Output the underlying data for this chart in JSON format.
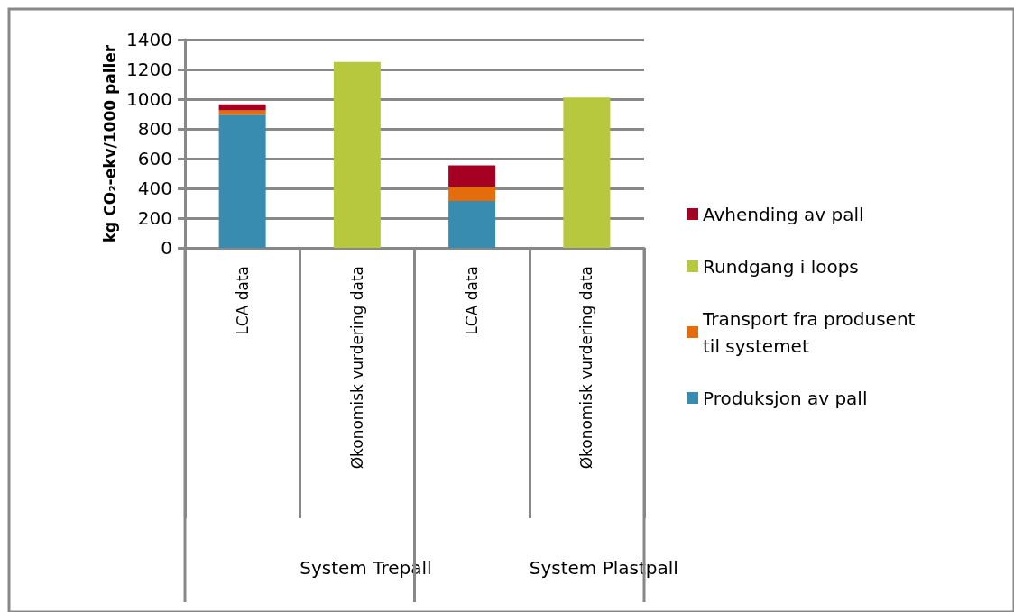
{
  "chart_data": {
    "type": "bar",
    "stacked": true,
    "ylabel": "kg CO₂-ekv/1000 paller",
    "categories": [
      "LCA data",
      "Økonomisk vurdering data",
      "LCA data",
      "Økonomisk vurdering data"
    ],
    "series": [
      {
        "name": "Produksjon av pall",
        "color": "#378caf",
        "values": [
          895,
          null,
          315,
          null
        ]
      },
      {
        "name": "Transport fra produsent til systemet",
        "color": "#e46c0a",
        "values": [
          30,
          null,
          95,
          null
        ]
      },
      {
        "name": "Rundgang i loops",
        "color": "#b8c83e",
        "values": [
          null,
          1250,
          null,
          1010
        ]
      },
      {
        "name": "Avhending av pall",
        "color": "#a50021",
        "values": [
          40,
          null,
          145,
          null
        ]
      }
    ],
    "annotations": [
      "System Trepall",
      "System Plastpall"
    ],
    "ylim": [
      0,
      1400
    ],
    "yticks": [
      0,
      200,
      400,
      600,
      800,
      1000,
      1200,
      1400
    ],
    "grid": "y",
    "legend": "right"
  }
}
